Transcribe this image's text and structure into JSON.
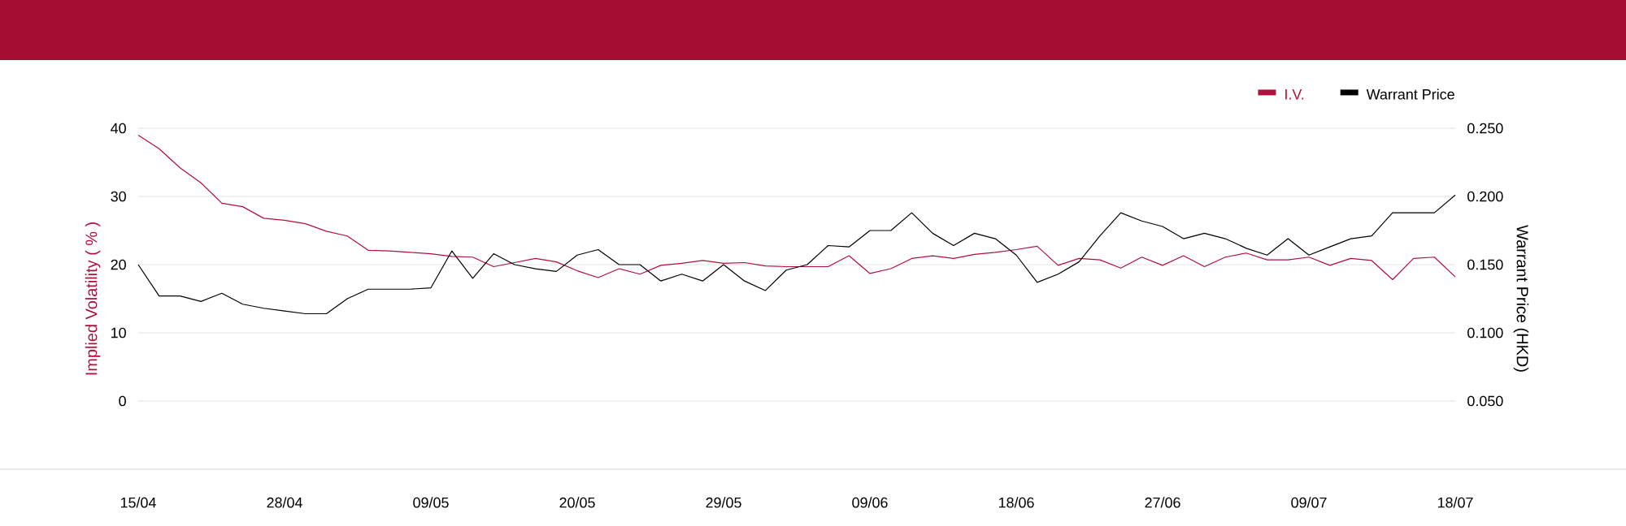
{
  "chart_data": {
    "type": "line",
    "ylabel": "Implied Volatility ( % )",
    "y2label": "Warrant Price (HKD)",
    "categories": [
      "15/04",
      null,
      null,
      null,
      null,
      null,
      null,
      "28/04",
      null,
      null,
      null,
      null,
      null,
      null,
      "09/05",
      null,
      null,
      null,
      null,
      null,
      null,
      "20/05",
      null,
      null,
      null,
      null,
      null,
      null,
      "29/05",
      null,
      null,
      null,
      null,
      null,
      null,
      "09/06",
      null,
      null,
      null,
      null,
      null,
      null,
      "18/06",
      null,
      null,
      null,
      null,
      null,
      null,
      "27/06",
      null,
      null,
      null,
      null,
      null,
      null,
      "09/07",
      null,
      null,
      null,
      null,
      null,
      null,
      "18/07"
    ],
    "series": [
      {
        "name": "I.V.",
        "color": "#b0103c",
        "values": [
          39.0,
          37.0,
          34.2,
          32.0,
          29.0,
          28.5,
          26.8,
          26.5,
          26.0,
          24.9,
          24.2,
          22.1,
          22.0,
          21.8,
          21.6,
          21.2,
          21.1,
          19.7,
          20.3,
          20.9,
          20.4,
          19.1,
          18.1,
          19.4,
          18.6,
          19.9,
          20.2,
          20.6,
          20.2,
          20.3,
          19.8,
          19.7,
          19.7,
          19.7,
          21.3,
          18.7,
          19.4,
          20.9,
          21.3,
          20.9,
          21.5,
          21.8,
          22.2,
          22.7,
          19.9,
          20.9,
          20.7,
          19.5,
          21.1,
          19.9,
          21.3,
          19.7,
          21.1,
          21.7,
          20.7,
          20.7,
          21.1,
          19.9,
          20.9,
          20.6,
          17.8,
          20.9,
          21.1,
          18.2
        ]
      },
      {
        "name": "Warrant Price",
        "color": "#000000",
        "axis": "y2",
        "values": [
          0.15,
          0.127,
          0.127,
          0.123,
          0.129,
          0.121,
          0.118,
          0.116,
          0.114,
          0.114,
          0.125,
          0.132,
          0.132,
          0.132,
          0.133,
          0.16,
          0.14,
          0.158,
          0.15,
          0.147,
          0.145,
          0.157,
          0.161,
          0.15,
          0.15,
          0.138,
          0.143,
          0.138,
          0.15,
          0.138,
          0.131,
          0.146,
          0.15,
          0.164,
          0.163,
          0.175,
          0.175,
          0.188,
          0.173,
          0.164,
          0.173,
          0.169,
          0.157,
          0.137,
          0.143,
          0.152,
          0.171,
          0.188,
          0.182,
          0.178,
          0.169,
          0.173,
          0.169,
          0.162,
          0.157,
          0.169,
          0.157,
          0.163,
          0.169,
          0.171,
          0.188,
          0.188,
          0.188,
          0.201
        ]
      }
    ],
    "ylim": [
      -10,
      40
    ],
    "yticks": [
      0,
      10,
      20,
      30,
      40
    ],
    "y2lim": [
      0,
      0.25
    ],
    "y2ticks": [
      {
        "value": 0.05,
        "label": "0.050"
      },
      {
        "value": 0.1,
        "label": "0.100"
      },
      {
        "value": 0.15,
        "label": "0.150"
      },
      {
        "value": 0.2,
        "label": "0.200"
      },
      {
        "value": 0.25,
        "label": "0.250"
      }
    ],
    "grid": "y",
    "legend": "top right"
  }
}
